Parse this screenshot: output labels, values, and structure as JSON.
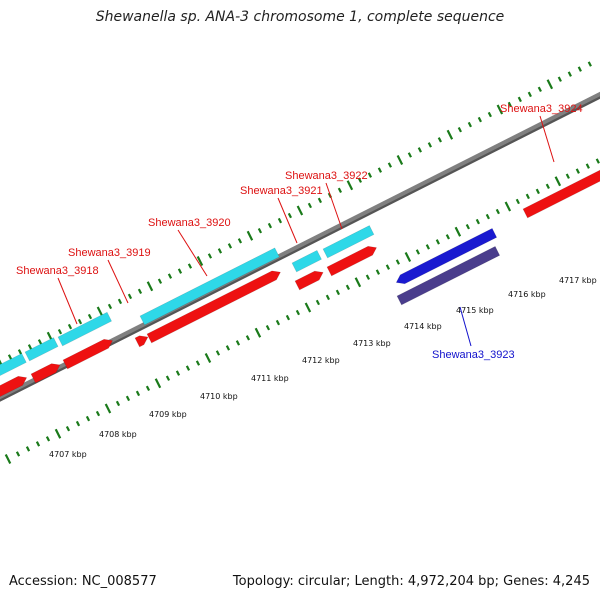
{
  "title": "Shewanella sp. ANA-3 chromosome 1, complete sequence",
  "footer": {
    "accession": "Accession: NC_008577",
    "summary": "Topology: circular; Length: 4,972,204 bp; Genes: 4,245"
  },
  "colors": {
    "forward_cds": "#ee1111",
    "forward_gene": "#2ed8e8",
    "reverse_cds": "#1a1ad0",
    "reverse_gene": "#4a3d8c",
    "backbone": "#808080",
    "tick": "#1a7a1a",
    "forward_label": "#dd1111",
    "reverse_label": "#1111cc"
  },
  "ruler_labels": [
    "4707 kbp",
    "4708 kbp",
    "4709 kbp",
    "4710 kbp",
    "4711 kbp",
    "4712 kbp",
    "4713 kbp",
    "4714 kbp",
    "4715 kbp",
    "4716 kbp",
    "4717 kbp"
  ],
  "gene_labels": [
    {
      "name": "Shewana3_3918",
      "strand": "forward"
    },
    {
      "name": "Shewana3_3919",
      "strand": "forward"
    },
    {
      "name": "Shewana3_3920",
      "strand": "forward"
    },
    {
      "name": "Shewana3_3921",
      "strand": "forward"
    },
    {
      "name": "Shewana3_3922",
      "strand": "forward"
    },
    {
      "name": "Shewana3_3923",
      "strand": "reverse"
    },
    {
      "name": "Shewana3_3924",
      "strand": "forward"
    }
  ]
}
